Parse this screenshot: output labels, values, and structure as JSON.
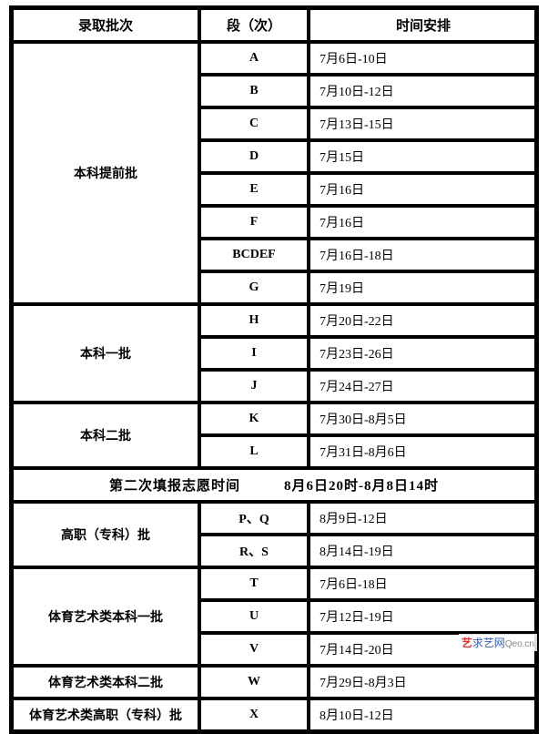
{
  "headers": {
    "batch": "录取批次",
    "segment": "段（次）",
    "time": "时间安排"
  },
  "batches": [
    {
      "name": "本科提前批",
      "rows": [
        {
          "seg": "A",
          "time": "7月6日-10日"
        },
        {
          "seg": "B",
          "time": "7月10日-12日"
        },
        {
          "seg": "C",
          "time": "7月13日-15日"
        },
        {
          "seg": "D",
          "time": "7月15日"
        },
        {
          "seg": "E",
          "time": "7月16日"
        },
        {
          "seg": "F",
          "time": "7月16日"
        },
        {
          "seg": "BCDEF",
          "time": "7月16日-18日"
        },
        {
          "seg": "G",
          "time": "7月19日"
        }
      ]
    },
    {
      "name": "本科一批",
      "rows": [
        {
          "seg": "H",
          "time": "7月20日-22日"
        },
        {
          "seg": "I",
          "time": "7月23日-26日"
        },
        {
          "seg": "J",
          "time": "7月24日-27日"
        }
      ]
    },
    {
      "name": "本科二批",
      "rows": [
        {
          "seg": "K",
          "time": "7月30日-8月5日"
        },
        {
          "seg": "L",
          "time": "7月31日-8月6日"
        }
      ]
    }
  ],
  "second_fill": "第二次填报志愿时间   8月6日20时-8月8日14时",
  "batches2": [
    {
      "name": "高职（专科）批",
      "rows": [
        {
          "seg": "P、Q",
          "time": "8月9日-12日"
        },
        {
          "seg": "R、S",
          "time": "8月14日-19日"
        }
      ]
    },
    {
      "name": "体育艺术类本科一批",
      "rows": [
        {
          "seg": "T",
          "time": "7月6日-18日"
        },
        {
          "seg": "U",
          "time": "7月12日-19日"
        },
        {
          "seg": "V",
          "time": "7月14日-20日"
        }
      ]
    },
    {
      "name": "体育艺术类本科二批",
      "rows": [
        {
          "seg": "W",
          "time": "7月29日-8月3日"
        }
      ]
    },
    {
      "name": "体育艺术类高职（专科）批",
      "rows": [
        {
          "seg": "X",
          "time": "8月10日-12日"
        }
      ]
    }
  ],
  "watermark": {
    "icon": "艺",
    "site": "求艺网",
    "url": "Qeo.cn"
  }
}
